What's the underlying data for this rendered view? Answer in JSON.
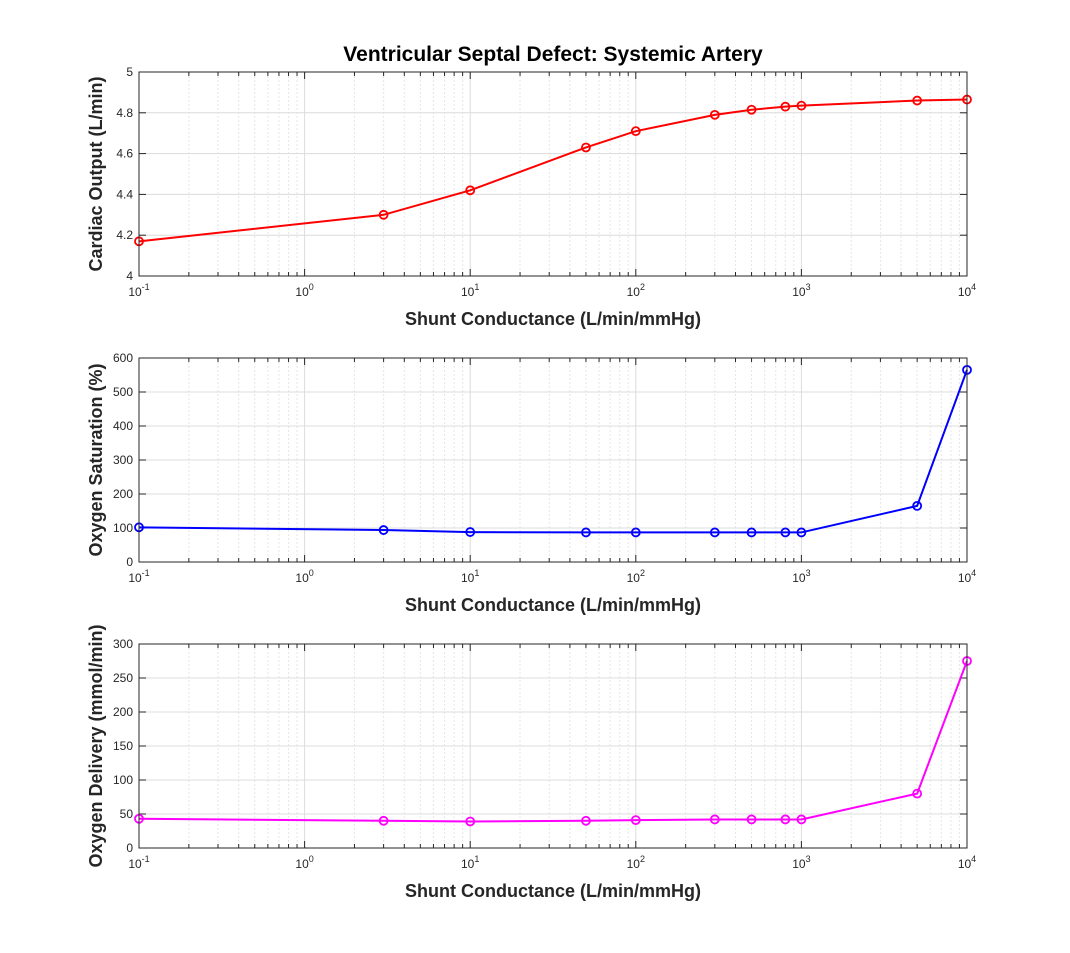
{
  "figure": {
    "title": "Ventricular Septal Defect: Systemic Artery"
  },
  "chart_data": [
    {
      "type": "line",
      "xscale": "log",
      "xlim": [
        0.1,
        10000
      ],
      "ylim": [
        4,
        5
      ],
      "xlabel": "Shunt Conductance (L/min/mmHg)",
      "ylabel": "Cardiac Output (L/min)",
      "grid": true,
      "marker": "circle",
      "color": "#ff0000",
      "yticks": [
        4,
        4.2,
        4.4,
        4.6,
        4.8,
        5
      ],
      "ytick_labels": [
        "4",
        "4.2",
        "4.4",
        "4.6",
        "4.8",
        "5"
      ],
      "x": [
        0.1,
        3,
        10,
        50,
        100,
        300,
        500,
        800,
        1000,
        5000,
        10000
      ],
      "y": [
        4.17,
        4.3,
        4.42,
        4.63,
        4.71,
        4.79,
        4.815,
        4.83,
        4.835,
        4.86,
        4.865
      ]
    },
    {
      "type": "line",
      "xscale": "log",
      "xlim": [
        0.1,
        10000
      ],
      "ylim": [
        0,
        600
      ],
      "xlabel": "Shunt Conductance (L/min/mmHg)",
      "ylabel": "Oxygen Saturation (%)",
      "grid": true,
      "marker": "circle",
      "color": "#0000ff",
      "yticks": [
        0,
        100,
        200,
        300,
        400,
        500,
        600
      ],
      "ytick_labels": [
        "0",
        "100",
        "200",
        "300",
        "400",
        "500",
        "600"
      ],
      "x": [
        0.1,
        3,
        10,
        50,
        100,
        300,
        500,
        800,
        1000,
        5000,
        10000
      ],
      "y": [
        102,
        94,
        88,
        87,
        87,
        87,
        87,
        87,
        87,
        165,
        565
      ]
    },
    {
      "type": "line",
      "xscale": "log",
      "xlim": [
        0.1,
        10000
      ],
      "ylim": [
        0,
        300
      ],
      "xlabel": "Shunt Conductance (L/min/mmHg)",
      "ylabel": "Oxygen Delivery (mmol/min)",
      "grid": true,
      "marker": "circle",
      "color": "#ff00ff",
      "yticks": [
        0,
        50,
        100,
        150,
        200,
        250,
        300
      ],
      "ytick_labels": [
        "0",
        "50",
        "100",
        "150",
        "200",
        "250",
        "300"
      ],
      "x": [
        0.1,
        3,
        10,
        50,
        100,
        300,
        500,
        800,
        1000,
        5000,
        10000
      ],
      "y": [
        43,
        40,
        39,
        40,
        41,
        42,
        42,
        42,
        42,
        80,
        275
      ]
    }
  ],
  "xtick_labels": [
    {
      "base": "10",
      "exp": "-1"
    },
    {
      "base": "10",
      "exp": "0"
    },
    {
      "base": "10",
      "exp": "1"
    },
    {
      "base": "10",
      "exp": "2"
    },
    {
      "base": "10",
      "exp": "3"
    },
    {
      "base": "10",
      "exp": "4"
    }
  ]
}
